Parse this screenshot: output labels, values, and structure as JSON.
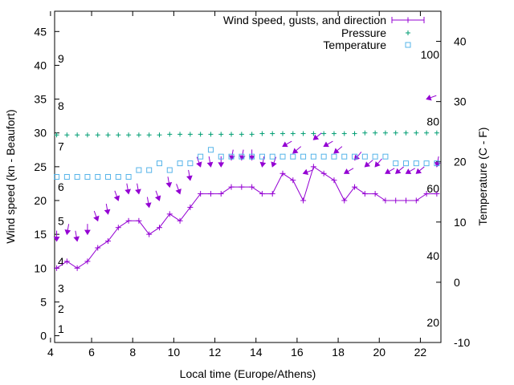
{
  "chart_data": {
    "type": "line",
    "title": "",
    "xlabel": "Local time (Europe/Athens)",
    "ylabel": "Wind speed (kn - Beaufort)",
    "y2label": "Temperature (C - F)",
    "xlim": [
      4.2,
      23.0
    ],
    "ylim": [
      -1,
      48
    ],
    "y2lim": [
      -10,
      45
    ],
    "x_ticks": [
      4,
      6,
      8,
      10,
      12,
      14,
      16,
      18,
      20,
      22
    ],
    "y_ticks": [
      0,
      5,
      10,
      15,
      20,
      25,
      30,
      35,
      40,
      45
    ],
    "y2_ticks": [
      -10,
      0,
      10,
      20,
      30,
      40
    ],
    "beaufort_labels": [
      {
        "label": "1",
        "knots": 1
      },
      {
        "label": "2",
        "knots": 4
      },
      {
        "label": "3",
        "knots": 7
      },
      {
        "label": "4",
        "knots": 11
      },
      {
        "label": "5",
        "knots": 17
      },
      {
        "label": "6",
        "knots": 22
      },
      {
        "label": "7",
        "knots": 28
      },
      {
        "label": "8",
        "knots": 34
      },
      {
        "label": "9",
        "knots": 41
      }
    ],
    "fahrenheit_labels": [
      {
        "label": "20",
        "celsius": -6.7
      },
      {
        "label": "40",
        "celsius": 4.4
      },
      {
        "label": "60",
        "celsius": 15.6
      },
      {
        "label": "80",
        "celsius": 26.7
      },
      {
        "label": "100",
        "celsius": 37.8
      }
    ],
    "legend": {
      "position": "top-right",
      "entries": [
        "Wind speed, gusts, and direction",
        "Pressure",
        "Temperature"
      ]
    },
    "colors": {
      "wind": "#9400d3",
      "pressure": "#009e73",
      "temperature": "#56b4e9",
      "axis": "#000000"
    },
    "series": [
      {
        "name": "Wind speed, gusts, and direction",
        "x": [
          4.3,
          4.8,
          5.3,
          5.8,
          6.3,
          6.8,
          7.3,
          7.8,
          8.3,
          8.8,
          9.3,
          9.8,
          10.3,
          10.8,
          11.3,
          11.8,
          12.3,
          12.8,
          13.3,
          13.8,
          14.3,
          14.8,
          15.3,
          15.8,
          16.3,
          16.8,
          17.3,
          17.8,
          18.3,
          18.8,
          19.3,
          19.8,
          20.3,
          20.8,
          21.3,
          21.8,
          22.3,
          22.8
        ],
        "values": [
          10,
          11,
          10,
          11,
          13,
          14,
          16,
          17,
          17,
          15,
          16,
          18,
          17,
          19,
          21,
          21,
          21,
          22,
          22,
          22,
          21,
          21,
          24,
          23,
          20,
          25,
          24,
          23,
          20,
          22,
          21,
          21,
          20,
          20,
          20,
          20,
          21,
          21
        ],
        "gusts": [
          14,
          15,
          14,
          15,
          17,
          18,
          20,
          21,
          21,
          19,
          20,
          22,
          21,
          23,
          25,
          25,
          25,
          26,
          26,
          26,
          25,
          25,
          28,
          27,
          24,
          29,
          28,
          27,
          24,
          26,
          25,
          25,
          24,
          24,
          24,
          24,
          35,
          25
        ],
        "direction_deg": [
          0,
          350,
          10,
          0,
          20,
          10,
          20,
          10,
          10,
          10,
          20,
          10,
          20,
          10,
          20,
          10,
          0,
          350,
          350,
          0,
          350,
          340,
          300,
          310,
          290,
          310,
          300,
          310,
          300,
          320,
          310,
          320,
          300,
          310,
          300,
          310,
          290,
          350
        ]
      },
      {
        "name": "Pressure",
        "x": [
          4.3,
          4.8,
          5.3,
          5.8,
          6.3,
          6.8,
          7.3,
          7.8,
          8.3,
          8.8,
          9.3,
          9.8,
          10.3,
          10.8,
          11.3,
          11.8,
          12.3,
          12.8,
          13.3,
          13.8,
          14.3,
          14.8,
          15.3,
          15.8,
          16.3,
          16.8,
          17.3,
          17.8,
          18.3,
          18.8,
          19.3,
          19.8,
          20.3,
          20.8,
          21.3,
          21.8,
          22.3,
          22.8
        ],
        "values": [
          29.7,
          29.7,
          29.7,
          29.7,
          29.7,
          29.7,
          29.7,
          29.7,
          29.7,
          29.7,
          29.7,
          29.8,
          29.8,
          29.8,
          29.8,
          29.8,
          29.8,
          29.8,
          29.8,
          29.8,
          29.9,
          29.9,
          29.9,
          29.9,
          29.9,
          29.9,
          29.9,
          29.9,
          29.9,
          29.9,
          30.0,
          30.0,
          30.0,
          30.0,
          30.0,
          30.0,
          30.0,
          30.0
        ]
      },
      {
        "name": "Temperature",
        "x": [
          4.3,
          4.8,
          5.3,
          5.8,
          6.3,
          6.8,
          7.3,
          7.8,
          8.3,
          8.8,
          9.3,
          9.8,
          10.3,
          10.8,
          11.3,
          11.8,
          12.3,
          12.8,
          13.3,
          13.8,
          14.3,
          14.8,
          15.3,
          15.8,
          16.3,
          16.8,
          17.3,
          17.8,
          18.3,
          18.8,
          19.3,
          19.8,
          20.3,
          20.8,
          21.3,
          21.8,
          22.3,
          22.8
        ],
        "values": [
          23.5,
          23.5,
          23.5,
          23.5,
          23.5,
          23.5,
          23.5,
          23.5,
          24.5,
          24.5,
          25.5,
          24.5,
          25.5,
          25.5,
          26.5,
          27.5,
          26.5,
          26.5,
          26.5,
          26.5,
          26.5,
          26.5,
          26.5,
          26.5,
          26.5,
          26.5,
          26.5,
          26.5,
          26.5,
          26.5,
          26.5,
          26.5,
          26.5,
          25.5,
          25.5,
          25.5,
          25.5,
          25.5
        ]
      }
    ]
  }
}
